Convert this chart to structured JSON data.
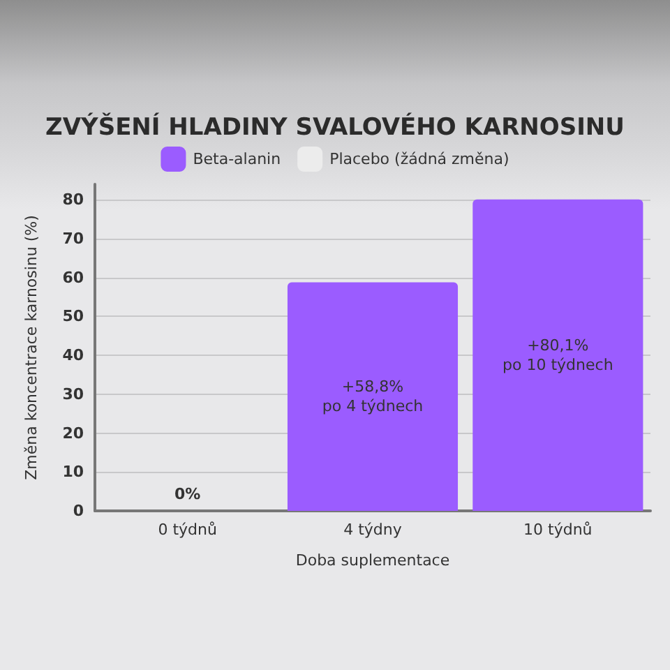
{
  "chart_data": {
    "type": "bar",
    "title": "ZVÝŠENÍ HLADINY SVALOVÉHO KARNOSINU",
    "xlabel": "Doba suplementace",
    "ylabel": "Změna koncentrace karnosinu (%)",
    "categories": [
      "0 týdnů",
      "4 týdny",
      "10 týdnů"
    ],
    "series": [
      {
        "name": "Beta-alanin",
        "color": "#9b5cff",
        "values": [
          0,
          58.8,
          80.1
        ],
        "value_labels": [
          "0%",
          "+58,8%\npo 4 týdnech",
          "+80,1%\npo 10 týdnech"
        ]
      },
      {
        "name": "Placebo (žádná změna)",
        "color": "#ececec",
        "values": [
          0,
          0,
          0
        ]
      }
    ],
    "ylim": [
      0,
      84
    ],
    "yticks": [
      0,
      10,
      20,
      30,
      40,
      50,
      60,
      70,
      80
    ],
    "grid": "y",
    "legend": "top"
  }
}
